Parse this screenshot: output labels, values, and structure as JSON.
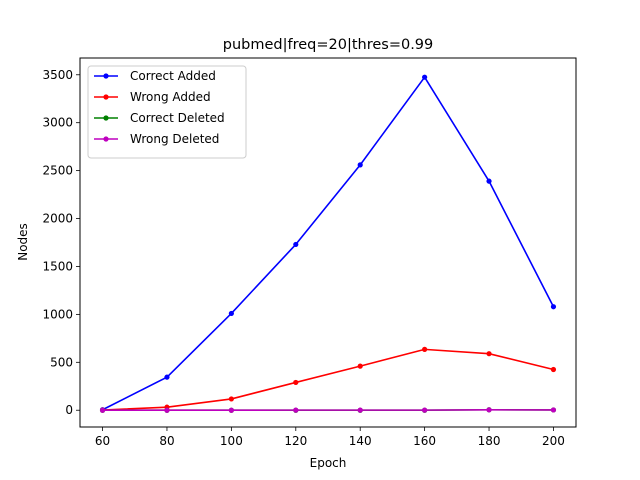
{
  "chart_data": {
    "type": "line",
    "title": "pubmed|freq=20|thres=0.99",
    "xlabel": "Epoch",
    "ylabel": "Nodes",
    "x": [
      60,
      80,
      100,
      120,
      140,
      160,
      180,
      200
    ],
    "xticks": [
      "60",
      "80",
      "100",
      "120",
      "140",
      "160",
      "180",
      "200"
    ],
    "yticks": [
      "0",
      "500",
      "1000",
      "1500",
      "2000",
      "2500",
      "3000",
      "3500"
    ],
    "xlim": [
      53,
      207
    ],
    "ylim": [
      -175,
      3675
    ],
    "grid": false,
    "legend_position": "upper-left",
    "series": [
      {
        "name": "Correct Added",
        "color": "#0000ff",
        "values": [
          5,
          345,
          1010,
          1730,
          2560,
          3475,
          2390,
          1080
        ]
      },
      {
        "name": "Wrong Added",
        "color": "#ff0000",
        "values": [
          2,
          32,
          118,
          290,
          460,
          635,
          590,
          425
        ]
      },
      {
        "name": "Correct Deleted",
        "color": "#008000",
        "values": [
          0,
          0,
          0,
          0,
          0,
          0,
          5,
          3
        ]
      },
      {
        "name": "Wrong Deleted",
        "color": "#bf00bf",
        "values": [
          0,
          0,
          0,
          1,
          1,
          1,
          4,
          3
        ]
      }
    ]
  }
}
